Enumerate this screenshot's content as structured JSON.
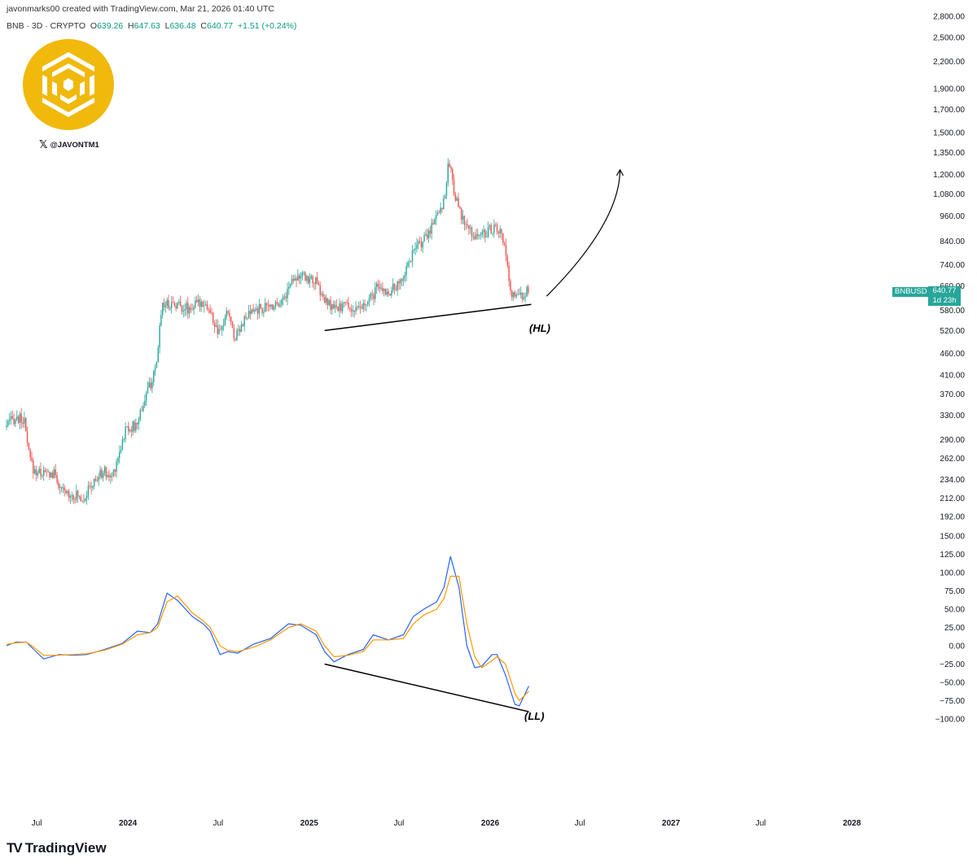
{
  "header": {
    "credit": "javonmarks00 created with TradingView.com, Mar 21, 2026 01:40 UTC",
    "symbol": "BNB · 3D · CRYPTO",
    "o_label": "O",
    "o_value": "639.26",
    "h_label": "H",
    "h_value": "647.63",
    "l_label": "L",
    "l_value": "636.48",
    "c_label": "C",
    "c_value": "640.77",
    "change": "+1.51 (+0.24%)"
  },
  "watermark": {
    "handle": "@JAVONTM1",
    "logo_color": "#F0B90B"
  },
  "footer": {
    "brand": "TradingView"
  },
  "price_tag": {
    "symbol": "BNBUSD",
    "price": "640.77",
    "countdown": "1d 23h"
  },
  "colors": {
    "up": "#26a69a",
    "down": "#ef5350",
    "signal_fast": "#2962ff",
    "signal_slow": "#ff9800"
  },
  "chart_data": [
    {
      "type": "candlestick",
      "series": [
        {
          "name": "BNBUSD",
          "values": []
        }
      ],
      "price_axis": {
        "scale": "log",
        "range": [
          192,
          2800
        ],
        "tick_labels": [
          "2,800.00",
          "2,500.00",
          "2,200.00",
          "1,900.00",
          "1,700.00",
          "1,500.00",
          "1,350.00",
          "1,200.00",
          "1,080.00",
          "960.00",
          "840.00",
          "740.00",
          "660.00",
          "580.00",
          "520.00",
          "460.00",
          "410.00",
          "370.00",
          "330.00",
          "290.00",
          "262.00",
          "234.00",
          "212.00",
          "192.00"
        ]
      },
      "time_axis": {
        "range": [
          "2023-05",
          "2028-02"
        ],
        "tick_labels": [
          "Jul",
          "2024",
          "Jul",
          "2025",
          "Jul",
          "2026",
          "Jul",
          "2027",
          "Jul",
          "2028"
        ]
      },
      "path": [
        [
          "2023-05-01",
          310
        ],
        [
          "2023-05-20",
          325
        ],
        [
          "2023-06-08",
          322
        ],
        [
          "2023-06-18",
          268
        ],
        [
          "2023-06-28",
          245
        ],
        [
          "2023-07-20",
          242
        ],
        [
          "2023-08-12",
          240
        ],
        [
          "2023-08-20",
          220
        ],
        [
          "2023-09-15",
          216
        ],
        [
          "2023-10-05",
          212
        ],
        [
          "2023-10-25",
          228
        ],
        [
          "2023-11-15",
          245
        ],
        [
          "2023-12-01",
          235
        ],
        [
          "2023-12-12",
          258
        ],
        [
          "2024-01-01",
          310
        ],
        [
          "2024-01-20",
          310
        ],
        [
          "2024-02-10",
          370
        ],
        [
          "2024-03-01",
          420
        ],
        [
          "2024-03-12",
          600
        ],
        [
          "2024-04-10",
          600
        ],
        [
          "2024-05-05",
          585
        ],
        [
          "2024-06-05",
          610
        ],
        [
          "2024-06-20",
          565
        ],
        [
          "2024-07-05",
          505
        ],
        [
          "2024-07-25",
          580
        ],
        [
          "2024-08-05",
          500
        ],
        [
          "2024-08-20",
          540
        ],
        [
          "2024-09-15",
          580
        ],
        [
          "2024-10-15",
          590
        ],
        [
          "2024-11-15",
          620
        ],
        [
          "2024-12-04",
          700
        ],
        [
          "2024-12-25",
          690
        ],
        [
          "2025-01-15",
          680
        ],
        [
          "2025-02-05",
          605
        ],
        [
          "2025-02-28",
          580
        ],
        [
          "2025-03-15",
          600
        ],
        [
          "2025-04-10",
          575
        ],
        [
          "2025-05-01",
          600
        ],
        [
          "2025-05-20",
          650
        ],
        [
          "2025-06-15",
          640
        ],
        [
          "2025-07-05",
          665
        ],
        [
          "2025-07-25",
          760
        ],
        [
          "2025-08-15",
          830
        ],
        [
          "2025-08-30",
          860
        ],
        [
          "2025-09-15",
          960
        ],
        [
          "2025-09-30",
          1020
        ],
        [
          "2025-10-08",
          1150
        ],
        [
          "2025-10-13",
          1300
        ],
        [
          "2025-10-22",
          1120
        ],
        [
          "2025-11-05",
          960
        ],
        [
          "2025-11-25",
          880
        ],
        [
          "2025-12-10",
          860
        ],
        [
          "2025-12-25",
          880
        ],
        [
          "2026-01-10",
          900
        ],
        [
          "2026-01-25",
          880
        ],
        [
          "2026-02-05",
          780
        ],
        [
          "2026-02-12",
          640
        ],
        [
          "2026-03-01",
          620
        ],
        [
          "2026-03-21",
          640.77
        ]
      ],
      "annotations": [
        {
          "text": "(HL)",
          "line": [
            [
              "2025-02-01",
              520
            ],
            [
              "2026-03-25",
              598
            ]
          ]
        },
        {
          "text": "↑",
          "curve": [
            [
              "2026-04-25",
              625
            ],
            [
              "2026-09-20",
              1230
            ]
          ]
        }
      ]
    },
    {
      "type": "line",
      "y_range": [
        -100,
        150
      ],
      "tick_labels": [
        "150.00",
        "125.00",
        "100.00",
        "75.00",
        "50.00",
        "25.00",
        "0.00",
        "−25.00",
        "−50.00",
        "−75.00",
        "−100.00"
      ],
      "series": [
        {
          "name": "",
          "color": "#2962ff",
          "values": [
            [
              "2023-05-01",
              0
            ],
            [
              "2023-05-20",
              5
            ],
            [
              "2023-06-10",
              5
            ],
            [
              "2023-06-25",
              -5
            ],
            [
              "2023-07-15",
              -18
            ],
            [
              "2023-08-15",
              -12
            ],
            [
              "2023-09-10",
              -13
            ],
            [
              "2023-10-10",
              -12
            ],
            [
              "2023-11-15",
              -5
            ],
            [
              "2023-12-20",
              3
            ],
            [
              "2024-01-20",
              20
            ],
            [
              "2024-02-15",
              18
            ],
            [
              "2024-03-01",
              30
            ],
            [
              "2024-03-20",
              72
            ],
            [
              "2024-04-10",
              62
            ],
            [
              "2024-05-10",
              40
            ],
            [
              "2024-06-01",
              30
            ],
            [
              "2024-06-15",
              20
            ],
            [
              "2024-07-05",
              -12
            ],
            [
              "2024-07-20",
              -8
            ],
            [
              "2024-08-10",
              -10
            ],
            [
              "2024-09-10",
              2
            ],
            [
              "2024-10-15",
              10
            ],
            [
              "2024-11-20",
              30
            ],
            [
              "2024-12-15",
              28
            ],
            [
              "2025-01-15",
              15
            ],
            [
              "2025-02-01",
              -8
            ],
            [
              "2025-02-20",
              -22
            ],
            [
              "2025-03-20",
              -12
            ],
            [
              "2025-04-20",
              -5
            ],
            [
              "2025-05-10",
              15
            ],
            [
              "2025-06-10",
              8
            ],
            [
              "2025-07-10",
              15
            ],
            [
              "2025-07-30",
              40
            ],
            [
              "2025-08-20",
              50
            ],
            [
              "2025-09-15",
              60
            ],
            [
              "2025-09-30",
              80
            ],
            [
              "2025-10-13",
              122
            ],
            [
              "2025-10-30",
              80
            ],
            [
              "2025-11-15",
              0
            ],
            [
              "2025-12-01",
              -30
            ],
            [
              "2025-12-15",
              -28
            ],
            [
              "2026-01-05",
              -12
            ],
            [
              "2026-01-15",
              -12
            ],
            [
              "2026-02-01",
              -40
            ],
            [
              "2026-02-20",
              -80
            ],
            [
              "2026-03-01",
              -82
            ],
            [
              "2026-03-20",
              -55
            ]
          ]
        },
        {
          "name": "",
          "color": "#ff9800",
          "values": [
            [
              "2023-05-01",
              2
            ],
            [
              "2023-05-20",
              4
            ],
            [
              "2023-06-10",
              5
            ],
            [
              "2023-06-25",
              -2
            ],
            [
              "2023-07-15",
              -13
            ],
            [
              "2023-08-15",
              -13
            ],
            [
              "2023-09-10",
              -12
            ],
            [
              "2023-10-10",
              -11
            ],
            [
              "2023-11-15",
              -6
            ],
            [
              "2023-12-20",
              2
            ],
            [
              "2024-01-20",
              15
            ],
            [
              "2024-02-15",
              18
            ],
            [
              "2024-03-01",
              25
            ],
            [
              "2024-03-20",
              60
            ],
            [
              "2024-04-10",
              68
            ],
            [
              "2024-05-10",
              45
            ],
            [
              "2024-06-01",
              34
            ],
            [
              "2024-06-15",
              25
            ],
            [
              "2024-07-05",
              0
            ],
            [
              "2024-07-20",
              -6
            ],
            [
              "2024-08-10",
              -8
            ],
            [
              "2024-09-10",
              -2
            ],
            [
              "2024-10-15",
              8
            ],
            [
              "2024-11-20",
              25
            ],
            [
              "2024-12-15",
              30
            ],
            [
              "2025-01-15",
              20
            ],
            [
              "2025-02-01",
              0
            ],
            [
              "2025-02-20",
              -15
            ],
            [
              "2025-03-20",
              -13
            ],
            [
              "2025-04-20",
              -8
            ],
            [
              "2025-05-10",
              8
            ],
            [
              "2025-06-10",
              8
            ],
            [
              "2025-07-10",
              10
            ],
            [
              "2025-07-30",
              30
            ],
            [
              "2025-08-20",
              42
            ],
            [
              "2025-09-15",
              50
            ],
            [
              "2025-09-30",
              65
            ],
            [
              "2025-10-13",
              95
            ],
            [
              "2025-10-30",
              95
            ],
            [
              "2025-11-15",
              30
            ],
            [
              "2025-12-01",
              -15
            ],
            [
              "2025-12-15",
              -30
            ],
            [
              "2026-01-05",
              -20
            ],
            [
              "2026-01-15",
              -15
            ],
            [
              "2026-02-01",
              -25
            ],
            [
              "2026-02-20",
              -65
            ],
            [
              "2026-03-01",
              -75
            ],
            [
              "2026-03-20",
              -62
            ]
          ]
        }
      ],
      "annotations": [
        {
          "text": "(LL)",
          "line": [
            [
              "2025-02-01",
              -25
            ],
            [
              "2026-03-20",
              -90
            ]
          ]
        }
      ]
    }
  ]
}
